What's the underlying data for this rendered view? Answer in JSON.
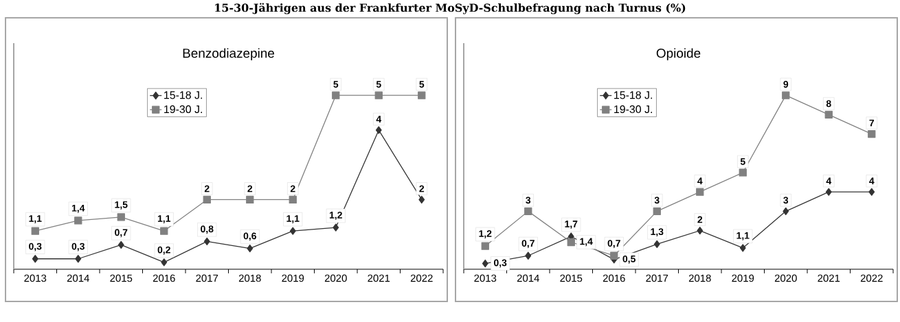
{
  "chart_data": [
    {
      "type": "line",
      "title": "Benzodiazepine",
      "annotations": [
        "15-30-Jährigen aus der Frankfurter MoSyD-Schulbefragung nach Turnus (%)"
      ],
      "categories": [
        "2013",
        "2014",
        "2015",
        "2016",
        "2017",
        "2018",
        "2019",
        "2020",
        "2021",
        "2022"
      ],
      "legend": "top",
      "series": [
        {
          "name": "15-18 J.",
          "color": "#333333",
          "marker": "diamond",
          "values": [
            0.3,
            0.3,
            0.7,
            0.2,
            0.8,
            0.6,
            1.1,
            1.2,
            4,
            2
          ],
          "value_labels": [
            "0,3",
            "0,3",
            "0,7",
            "0,2",
            "0,8",
            "0,6",
            "1,1",
            "1,2",
            "4",
            "2"
          ]
        },
        {
          "name": "19-30 J.",
          "color": "#808080",
          "marker": "square",
          "values": [
            1.1,
            1.4,
            1.5,
            1.1,
            2,
            2,
            2,
            5,
            5,
            5
          ],
          "value_labels": [
            "1,1",
            "1,4",
            "1,5",
            "1,1",
            "2",
            "2",
            "2",
            "5",
            "5",
            "5"
          ]
        }
      ]
    },
    {
      "type": "line",
      "title": "Opioide",
      "categories": [
        "2013",
        "2014",
        "2015",
        "2016",
        "2017",
        "2018",
        "2019",
        "2020",
        "2021",
        "2022"
      ],
      "legend": "top",
      "series": [
        {
          "name": "15-18 J.",
          "color": "#333333",
          "marker": "diamond",
          "values": [
            0.3,
            0.7,
            1.7,
            0.5,
            1.3,
            2,
            1.1,
            3,
            4,
            4
          ],
          "value_labels": [
            "0,3",
            "0,7",
            "1,7",
            "0,5",
            "1,3",
            "2",
            "1,1",
            "3",
            "4",
            "4"
          ]
        },
        {
          "name": "19-30 J.",
          "color": "#808080",
          "marker": "square",
          "values": [
            1.2,
            3,
            1.4,
            0.7,
            3,
            4,
            5,
            9,
            8,
            7
          ],
          "value_labels": [
            "1,2",
            "3",
            "1,4",
            "0,7",
            "3",
            "4",
            "5",
            "9",
            "8",
            "7"
          ]
        }
      ]
    }
  ]
}
